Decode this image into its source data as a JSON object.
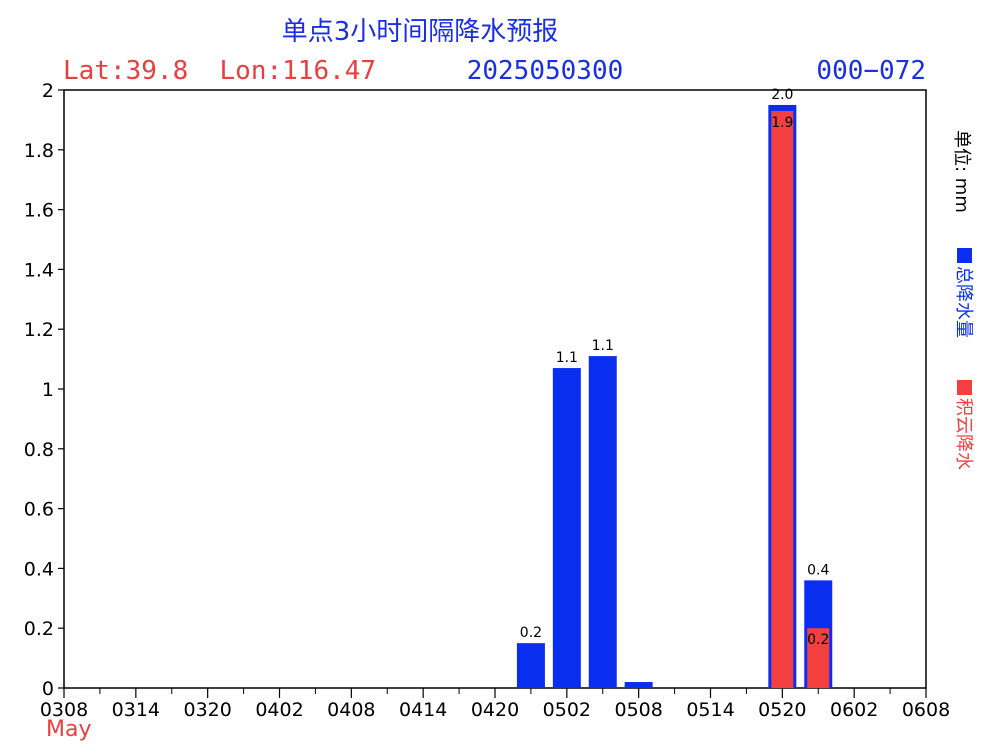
{
  "header": {
    "title": "单点3小时间隔降水预报",
    "location": "Lat:39.8  Lon:116.47",
    "init_time": "2025050300",
    "forecast_range": "000−072",
    "month_label": "May"
  },
  "legend": {
    "unit": "单位: mm",
    "total_label": "总降水量",
    "convective_label": "积云降水",
    "total_color": "#0a2ef0",
    "convective_color": "#f24040"
  },
  "chart_data": {
    "type": "bar",
    "categories": [
      "0308",
      "0314",
      "0320",
      "0402",
      "0408",
      "0414",
      "0420",
      "0502",
      "0508",
      "0514",
      "0520",
      "0602",
      "0608"
    ],
    "ylim": [
      0,
      2
    ],
    "yticks": [
      0,
      0.2,
      0.4,
      0.6,
      0.8,
      1,
      1.2,
      1.4,
      1.6,
      1.8,
      2
    ],
    "ytick_labels": [
      "0",
      "0.2",
      "0.4",
      "0.6",
      "0.8",
      "1",
      "1.2",
      "1.4",
      "1.6",
      "1.8",
      "2"
    ],
    "grid": false,
    "series": [
      {
        "name": "总降水量",
        "color": "#0a2ef0",
        "points": [
          {
            "x": 6.5,
            "value": 0.15,
            "label": "0.2"
          },
          {
            "x": 7.0,
            "value": 1.07,
            "label": "1.1"
          },
          {
            "x": 7.5,
            "value": 1.11,
            "label": "1.1"
          },
          {
            "x": 8.0,
            "value": 0.02,
            "label": ""
          },
          {
            "x": 10.0,
            "value": 1.95,
            "label": "2.0"
          },
          {
            "x": 10.5,
            "value": 0.36,
            "label": "0.4"
          }
        ]
      },
      {
        "name": "积云降水",
        "color": "#f24040",
        "points": [
          {
            "x": 10.0,
            "value": 1.93,
            "label": "1.9"
          },
          {
            "x": 10.5,
            "value": 0.2,
            "label": "0.2"
          }
        ]
      }
    ]
  }
}
